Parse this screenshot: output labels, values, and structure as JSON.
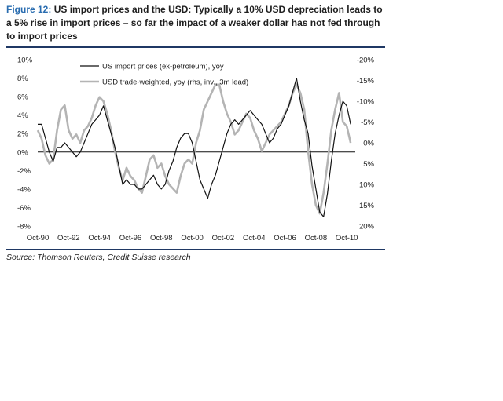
{
  "figure": {
    "label": "Figure 12:",
    "title": "US import prices and the USD: Typically a 10% USD depreciation leads to a 5% rise in import prices – so far the impact of a weaker dollar has not fed through to import prices",
    "source": "Source: Thomson Reuters, Credit Suisse research"
  },
  "colors": {
    "accent": "#2a6db0",
    "rule": "#1f3864",
    "series1": "#111111",
    "series2": "#b4b4b4"
  },
  "chart_data": {
    "type": "line",
    "title": "",
    "xlabel": "",
    "ylabel": "",
    "x_ticks": [
      "Oct-90",
      "Oct-92",
      "Oct-94",
      "Oct-96",
      "Oct-98",
      "Oct-00",
      "Oct-02",
      "Oct-04",
      "Oct-06",
      "Oct-08",
      "Oct-10"
    ],
    "x_range": [
      1990.75,
      2011.3
    ],
    "y_left": {
      "ticks": [
        "10%",
        "8%",
        "6%",
        "4%",
        "2%",
        "0%",
        "-2%",
        "-4%",
        "-6%",
        "-8%"
      ],
      "range": [
        -8,
        10
      ]
    },
    "y_right": {
      "ticks": [
        "-20%",
        "-15%",
        "-10%",
        "-5%",
        "0%",
        "5%",
        "10%",
        "15%",
        "20%"
      ],
      "range": [
        -20,
        20
      ],
      "inverted": true
    },
    "grid": false,
    "legend": "top-left",
    "series": [
      {
        "name": "US import prices (ex-petroleum), yoy",
        "axis": "left",
        "x": [
          1990.75,
          1991.0,
          1991.25,
          1991.5,
          1991.75,
          1992.0,
          1992.25,
          1992.5,
          1992.75,
          1993.0,
          1993.25,
          1993.5,
          1993.75,
          1994.0,
          1994.25,
          1994.5,
          1994.75,
          1995.0,
          1995.25,
          1995.5,
          1995.75,
          1996.0,
          1996.25,
          1996.5,
          1996.75,
          1997.0,
          1997.25,
          1997.5,
          1997.75,
          1998.0,
          1998.25,
          1998.5,
          1998.75,
          1999.0,
          1999.25,
          1999.5,
          1999.75,
          2000.0,
          2000.25,
          2000.5,
          2000.75,
          2001.0,
          2001.25,
          2001.5,
          2001.75,
          2002.0,
          2002.25,
          2002.5,
          2002.75,
          2003.0,
          2003.25,
          2003.5,
          2003.75,
          2004.0,
          2004.25,
          2004.5,
          2004.75,
          2005.0,
          2005.25,
          2005.5,
          2005.75,
          2006.0,
          2006.25,
          2006.5,
          2006.75,
          2007.0,
          2007.25,
          2007.5,
          2007.75,
          2008.0,
          2008.25,
          2008.5,
          2008.75,
          2009.0,
          2009.25,
          2009.5,
          2009.75,
          2010.0,
          2010.25,
          2010.5,
          2010.75,
          2011.0
        ],
        "values": [
          3.0,
          3.0,
          1.5,
          0.0,
          -1.0,
          0.5,
          0.5,
          1.0,
          0.5,
          0.0,
          -0.5,
          0.0,
          1.0,
          2.0,
          3.0,
          3.5,
          4.0,
          5.0,
          3.5,
          2.0,
          0.5,
          -1.5,
          -3.5,
          -3.0,
          -3.5,
          -3.5,
          -4.0,
          -4.0,
          -3.5,
          -3.0,
          -2.5,
          -3.5,
          -4.0,
          -3.5,
          -2.0,
          -1.0,
          0.5,
          1.5,
          2.0,
          2.0,
          1.0,
          -1.0,
          -3.0,
          -4.0,
          -5.0,
          -3.5,
          -2.5,
          -1.0,
          0.5,
          2.0,
          3.0,
          3.5,
          3.0,
          3.5,
          4.0,
          4.5,
          4.0,
          3.5,
          3.0,
          2.0,
          1.0,
          1.5,
          2.5,
          3.0,
          4.0,
          5.0,
          6.5,
          8.0,
          5.5,
          3.5,
          2.0,
          -1.5,
          -4.0,
          -6.5,
          -7.0,
          -4.5,
          -1.0,
          2.0,
          4.0,
          5.5,
          5.0,
          3.0
        ]
      },
      {
        "name": "USD trade-weighted, yoy (rhs, inv., 3m lead)",
        "axis": "right",
        "x": [
          1990.75,
          1991.0,
          1991.25,
          1991.5,
          1991.75,
          1992.0,
          1992.25,
          1992.5,
          1992.75,
          1993.0,
          1993.25,
          1993.5,
          1993.75,
          1994.0,
          1994.25,
          1994.5,
          1994.75,
          1995.0,
          1995.25,
          1995.5,
          1995.75,
          1996.0,
          1996.25,
          1996.5,
          1996.75,
          1997.0,
          1997.25,
          1997.5,
          1997.75,
          1998.0,
          1998.25,
          1998.5,
          1998.75,
          1999.0,
          1999.25,
          1999.5,
          1999.75,
          2000.0,
          2000.25,
          2000.5,
          2000.75,
          2001.0,
          2001.25,
          2001.5,
          2001.75,
          2002.0,
          2002.25,
          2002.5,
          2002.75,
          2003.0,
          2003.25,
          2003.5,
          2003.75,
          2004.0,
          2004.25,
          2004.5,
          2004.75,
          2005.0,
          2005.25,
          2005.5,
          2005.75,
          2006.0,
          2006.25,
          2006.5,
          2006.75,
          2007.0,
          2007.25,
          2007.5,
          2007.75,
          2008.0,
          2008.25,
          2008.5,
          2008.75,
          2009.0,
          2009.25,
          2009.5,
          2009.75,
          2010.0,
          2010.25,
          2010.5,
          2010.75,
          2011.0
        ],
        "values": [
          -3.0,
          -1.0,
          3.0,
          5.0,
          4.0,
          -3.0,
          -8.0,
          -9.0,
          -3.0,
          -1.0,
          -2.0,
          0.0,
          -3.0,
          -4.0,
          -6.0,
          -9.0,
          -11.0,
          -10.0,
          -7.0,
          -3.0,
          2.0,
          6.0,
          9.0,
          6.0,
          8.0,
          9.0,
          11.0,
          12.0,
          8.0,
          4.0,
          3.0,
          6.0,
          5.0,
          8.0,
          10.0,
          11.0,
          12.0,
          8.0,
          5.0,
          4.0,
          5.0,
          0.0,
          -3.0,
          -8.0,
          -10.0,
          -12.0,
          -14.0,
          -14.0,
          -10.0,
          -7.0,
          -5.0,
          -2.0,
          -3.0,
          -5.0,
          -7.0,
          -6.0,
          -3.0,
          -1.0,
          2.0,
          0.0,
          -2.0,
          -3.0,
          -4.0,
          -5.0,
          -7.0,
          -9.0,
          -12.0,
          -14.0,
          -12.0,
          -8.0,
          2.0,
          10.0,
          15.0,
          17.0,
          12.0,
          5.0,
          -3.0,
          -8.0,
          -12.0,
          -5.0,
          -4.0,
          0.0
        ]
      }
    ]
  }
}
